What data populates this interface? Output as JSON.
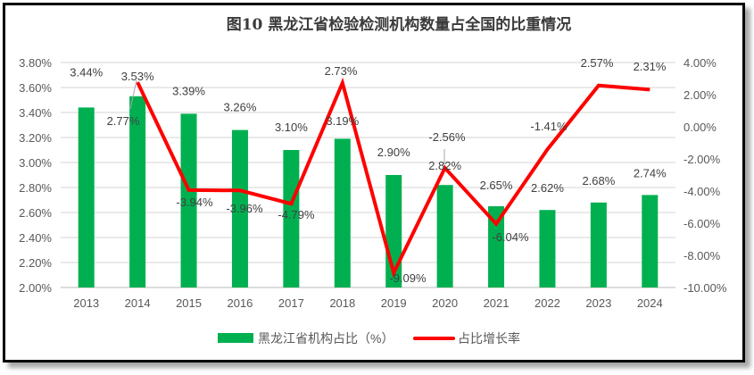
{
  "chart_data": {
    "type": "bar+line",
    "title": "图10  黑龙江省检验检测机构数量占全国的比重情况",
    "categories": [
      "2013",
      "2014",
      "2015",
      "2016",
      "2017",
      "2018",
      "2019",
      "2020",
      "2021",
      "2022",
      "2023",
      "2024"
    ],
    "series": [
      {
        "name": "黑龙江省机构占比（%）",
        "type": "bar",
        "axis": "left",
        "color": "#00B050",
        "values": [
          3.44,
          3.53,
          3.39,
          3.26,
          3.1,
          3.19,
          2.9,
          2.82,
          2.65,
          2.62,
          2.68,
          2.74
        ],
        "labels": [
          "3.44%",
          "3.53%",
          "3.39%",
          "3.26%",
          "3.10%",
          "3.19%",
          "2.90%",
          "2.82%",
          "2.65%",
          "2.62%",
          "2.68%",
          "2.74%"
        ]
      },
      {
        "name": "占比增长率",
        "type": "line",
        "axis": "right",
        "color": "#FF0000",
        "values": [
          null,
          2.77,
          -3.94,
          -3.96,
          -4.79,
          2.73,
          -9.09,
          -2.56,
          -6.04,
          -1.41,
          2.57,
          2.31
        ],
        "labels": [
          "",
          "2.77%",
          "-3.94%",
          "-3.96%",
          "-4.79%",
          "2.73%",
          "-9.09%",
          "-2.56%",
          "-6.04%",
          "-1.41%",
          "2.57%",
          "2.31%"
        ]
      }
    ],
    "left_axis": {
      "ylim": [
        2.0,
        3.8
      ],
      "ticks": [
        "2.00%",
        "2.20%",
        "2.40%",
        "2.60%",
        "2.80%",
        "3.00%",
        "3.20%",
        "3.40%",
        "3.60%",
        "3.80%"
      ]
    },
    "right_axis": {
      "ylim": [
        -10.0,
        4.0
      ],
      "ticks": [
        "-10.00%",
        "-8.00%",
        "-6.00%",
        "-4.00%",
        "-2.00%",
        "0.00%",
        "2.00%",
        "4.00%"
      ]
    },
    "grid": true,
    "legend": "bottom"
  }
}
